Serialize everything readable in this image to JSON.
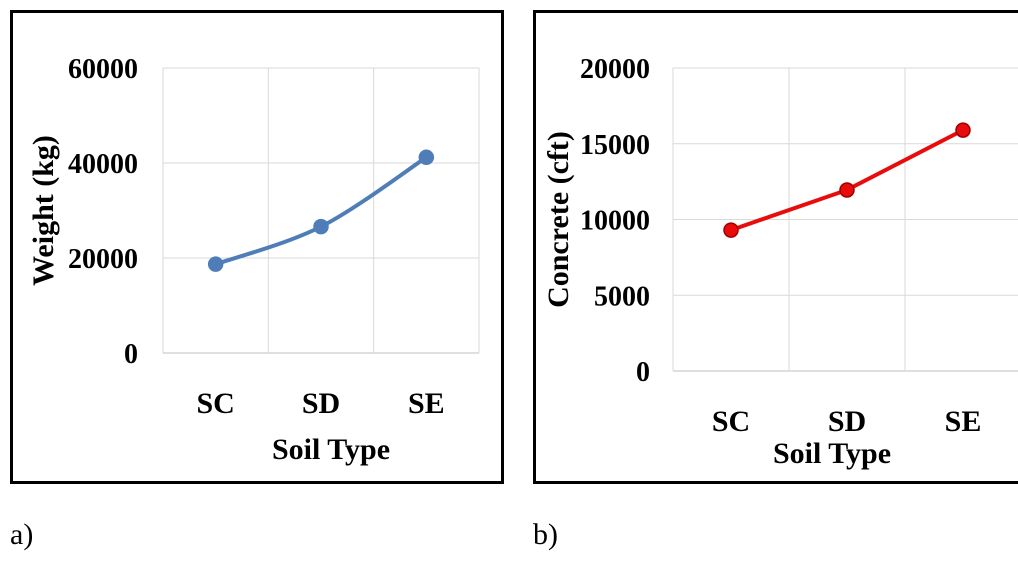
{
  "captions": {
    "a": "a)",
    "b": "b)"
  },
  "chart_data": [
    {
      "type": "line",
      "panel": "a",
      "categories": [
        "SC",
        "SD",
        "SE"
      ],
      "series": [
        {
          "values": [
            18700,
            26600,
            41200
          ],
          "color": "#4F7DB8"
        }
      ],
      "xlabel": "Soil Type",
      "ylabel": "Weight (kg)",
      "ylim": [
        0,
        60000
      ],
      "yticks": [
        0,
        20000,
        40000,
        60000
      ],
      "grid": true,
      "smooth": true
    },
    {
      "type": "line",
      "panel": "b",
      "categories": [
        "SC",
        "SD",
        "SE"
      ],
      "series": [
        {
          "values": [
            9300,
            11950,
            15900
          ],
          "color": "#E80C0C"
        }
      ],
      "xlabel": "Soil Type",
      "ylabel": "Concrete (cft)",
      "ylim": [
        0,
        20000
      ],
      "yticks": [
        0,
        5000,
        10000,
        15000,
        20000
      ],
      "grid": true,
      "smooth": false
    }
  ]
}
